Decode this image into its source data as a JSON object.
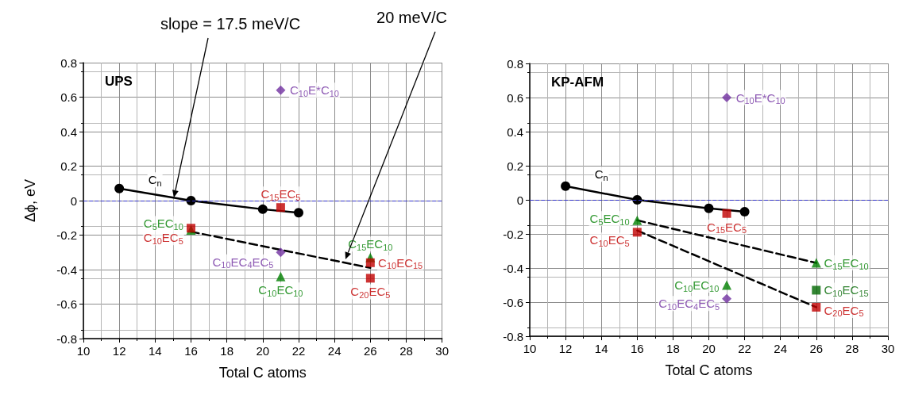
{
  "chart_data": [
    {
      "type": "scatter",
      "title": "UPS",
      "xlabel": "Total C atoms",
      "ylabel": "Δϕ, eV",
      "xlim": [
        10,
        30
      ],
      "xticks": [
        10,
        12,
        14,
        16,
        18,
        20,
        22,
        24,
        26,
        28,
        30
      ],
      "ylim": [
        -0.8,
        0.8
      ],
      "yticks": [
        -0.8,
        -0.6,
        -0.4,
        -0.2,
        0,
        0.2,
        0.4,
        0.6,
        0.8
      ],
      "grid": true,
      "ref_lines": [
        {
          "axis": "y",
          "value": 0,
          "color": "#3333cc",
          "line_style": "dashed"
        }
      ],
      "annotations": [
        "slope = 17.5 meV/C",
        "20 meV/C"
      ],
      "series": [
        {
          "type": "line",
          "marker": "none",
          "line_style": "dashed",
          "color": "#000000",
          "x": [
            16,
            26
          ],
          "values": [
            -0.18,
            -0.39
          ]
        },
        {
          "name": "C$_{n}$",
          "type": "line",
          "marker": "circle",
          "line_style": "solid",
          "color": "#000000",
          "x": [
            12,
            16,
            20,
            22
          ],
          "values": [
            0.07,
            0,
            -0.05,
            -0.07
          ]
        },
        {
          "name": "C$_{15}$EC$_{5}$",
          "marker": "square",
          "color": "#c00000",
          "x": [
            21
          ],
          "values": [
            -0.04
          ]
        },
        {
          "name": "C$_{5}$EC$_{10}$",
          "marker": "triangle",
          "color": "#008000",
          "x": [
            16
          ],
          "values": [
            -0.17
          ]
        },
        {
          "name": "C$_{10}$EC$_{5}$",
          "marker": "square",
          "color": "#c00000",
          "x": [
            16
          ],
          "values": [
            -0.16
          ]
        },
        {
          "name": "C$_{10}$EC$_{4}$EC$_{5}$",
          "marker": "diamond",
          "color": "#7030a0",
          "x": [
            21
          ],
          "values": [
            -0.3
          ]
        },
        {
          "name": "C$_{10}$EC$_{10}$",
          "marker": "triangle",
          "color": "#008000",
          "x": [
            21
          ],
          "values": [
            -0.44
          ]
        },
        {
          "name": "C$_{15}$EC$_{10}$",
          "marker": "triangle",
          "color": "#008000",
          "x": [
            26
          ],
          "values": [
            -0.33
          ]
        },
        {
          "name": "C$_{10}$EC$_{15}$",
          "marker": "square",
          "color": "#c00000",
          "x": [
            26
          ],
          "values": [
            -0.36
          ]
        },
        {
          "name": "C$_{20}$EC$_{5}$",
          "marker": "square",
          "color": "#c00000",
          "x": [
            26
          ],
          "values": [
            -0.45
          ]
        },
        {
          "name": "C$_{10}$E*C$_{10}$",
          "marker": "diamond",
          "color": "#7030a0",
          "x": [
            21
          ],
          "values": [
            0.64
          ]
        }
      ]
    },
    {
      "type": "scatter",
      "title": "KP-AFM",
      "xlabel": "Total C atoms",
      "xlim": [
        10,
        30
      ],
      "xticks": [
        10,
        12,
        14,
        16,
        18,
        20,
        22,
        24,
        26,
        28,
        30
      ],
      "ylim": [
        -0.8,
        0.8
      ],
      "yticks": [
        -0.8,
        -0.6,
        -0.4,
        -0.2,
        0,
        0.2,
        0.4,
        0.6,
        0.8
      ],
      "grid": true,
      "ref_lines": [
        {
          "axis": "y",
          "value": 0,
          "color": "#3333cc",
          "line_style": "dashed"
        }
      ],
      "series": [
        {
          "type": "line",
          "marker": "none",
          "line_style": "dashed",
          "color": "#000000",
          "x": [
            16,
            26
          ],
          "values": [
            -0.12,
            -0.37
          ]
        },
        {
          "type": "line",
          "marker": "none",
          "line_style": "dashed",
          "color": "#000000",
          "x": [
            16,
            26
          ],
          "values": [
            -0.18,
            -0.63
          ]
        },
        {
          "name": "C$_{n}$",
          "type": "line",
          "marker": "circle",
          "line_style": "solid",
          "color": "#000000",
          "x": [
            12,
            16,
            20,
            22
          ],
          "values": [
            0.08,
            0,
            -0.05,
            -0.07
          ]
        },
        {
          "name": "C$_{15}$EC$_{5}$",
          "marker": "square",
          "color": "#c00000",
          "x": [
            21
          ],
          "values": [
            -0.08
          ]
        },
        {
          "name": "C$_{5}$EC$_{10}$",
          "marker": "triangle",
          "color": "#008000",
          "x": [
            16
          ],
          "values": [
            -0.12
          ]
        },
        {
          "name": "C$_{10}$EC$_{5}$",
          "marker": "square",
          "color": "#c00000",
          "x": [
            16
          ],
          "values": [
            -0.19
          ]
        },
        {
          "name": "C$_{15}$EC$_{10}$",
          "marker": "triangle",
          "color": "#008000",
          "x": [
            26
          ],
          "values": [
            -0.37
          ]
        },
        {
          "name": "C$_{10}$EC$_{10}$",
          "marker": "triangle",
          "color": "#008000",
          "x": [
            21
          ],
          "values": [
            -0.5
          ]
        },
        {
          "name": "C$_{10}$EC$_{4}$EC$_{5}$",
          "marker": "diamond",
          "color": "#7030a0",
          "x": [
            21
          ],
          "values": [
            -0.58
          ]
        },
        {
          "name": "C$_{10}$EC$_{15}$",
          "marker": "square",
          "color": "#006600",
          "x": [
            26
          ],
          "values": [
            -0.53
          ]
        },
        {
          "name": "C$_{20}$EC$_{5}$",
          "marker": "square",
          "color": "#c00000",
          "x": [
            26
          ],
          "values": [
            -0.63
          ]
        },
        {
          "name": "C$_{10}$E*C$_{10}$",
          "marker": "diamond",
          "color": "#7030a0",
          "x": [
            21
          ],
          "values": [
            0.6
          ]
        }
      ]
    }
  ]
}
